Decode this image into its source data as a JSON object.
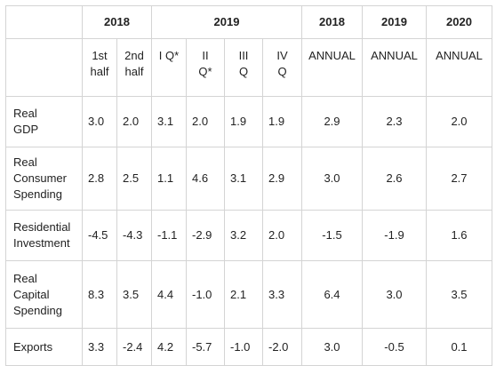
{
  "header_years": [
    "2018",
    "2019",
    "2018",
    "2019",
    "2020"
  ],
  "subheaders": [
    "1st\nhalf",
    "2nd\nhalf",
    "I Q*",
    "II\nQ*",
    "III\nQ",
    "IV\nQ",
    "ANNUAL",
    "ANNUAL",
    "ANNUAL"
  ],
  "rows": [
    {
      "label": "Real\nGDP",
      "values": [
        "3.0",
        "2.0",
        "3.1",
        "2.0",
        "1.9",
        "1.9",
        "2.9",
        "2.3",
        "2.0"
      ]
    },
    {
      "label": "Real\nConsumer\nSpending",
      "values": [
        "2.8",
        "2.5",
        "1.1",
        "4.6",
        "3.1",
        "2.9",
        "3.0",
        "2.6",
        "2.7"
      ]
    },
    {
      "label": "Residential\nInvestment",
      "values": [
        "-4.5",
        "-4.3",
        "-1.1",
        "-2.9",
        "3.2",
        "2.0",
        "-1.5",
        "-1.9",
        "1.6"
      ]
    },
    {
      "label": "Real\nCapital\nSpending",
      "values": [
        "8.3",
        "3.5",
        "4.4",
        "-1.0",
        "2.1",
        "3.3",
        "6.4",
        "3.0",
        "3.5"
      ]
    },
    {
      "label": "Exports",
      "values": [
        "3.3",
        "-2.4",
        "4.2",
        "-5.7",
        "-1.0",
        "-2.0",
        "3.0",
        "-0.5",
        "0.1"
      ]
    }
  ]
}
